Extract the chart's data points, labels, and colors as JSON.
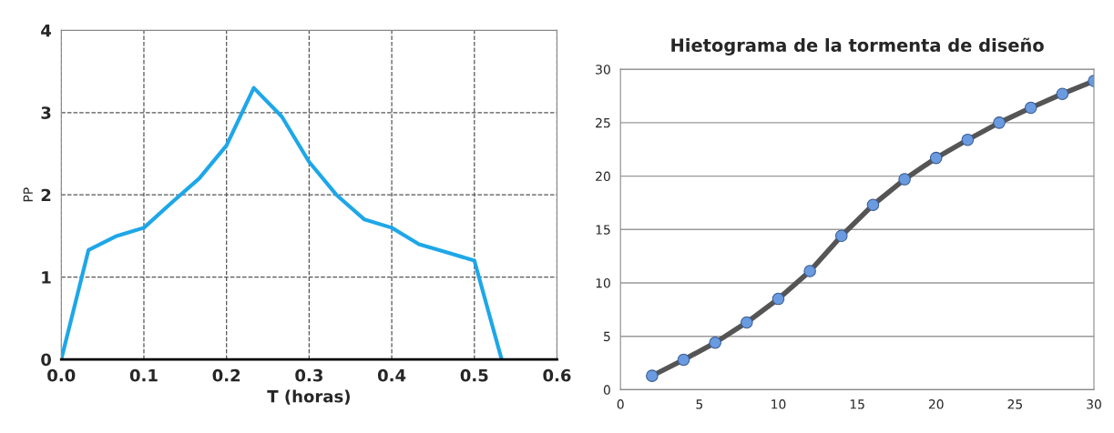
{
  "chart_data": [
    {
      "type": "line",
      "xlabel": "T (horas)",
      "ylabel": "PP",
      "xlim": [
        0,
        0.6
      ],
      "ylim": [
        0,
        4
      ],
      "xticks": [
        {
          "value": 0,
          "label": "0.0"
        },
        0.1,
        0.2,
        0.3,
        0.4,
        0.5,
        0.6
      ],
      "yticks": [
        0,
        1,
        2,
        3,
        4
      ],
      "grid": true,
      "marker": "none",
      "line_style": "solid",
      "series": [
        {
          "color": "#1ea7e8",
          "x": [
            0,
            0.033,
            0.067,
            0.1,
            0.133,
            0.167,
            0.2,
            0.233,
            0.267,
            0.3,
            0.333,
            0.367,
            0.4,
            0.433,
            0.467,
            0.5,
            0.533
          ],
          "values": [
            0,
            1.33,
            1.5,
            1.6,
            1.9,
            2.2,
            2.6,
            3.3,
            2.95,
            2.4,
            2.0,
            1.7,
            1.6,
            1.4,
            1.3,
            1.2,
            0
          ]
        }
      ]
    },
    {
      "type": "line",
      "title": "Hietograma de la tormenta de diseño",
      "xlim": [
        0,
        30
      ],
      "ylim": [
        0,
        30
      ],
      "xticks": [
        0,
        5,
        10,
        15,
        20,
        25,
        30
      ],
      "yticks": [
        0,
        5,
        10,
        15,
        20,
        25,
        30
      ],
      "grid": "y",
      "marker": "circle",
      "line_style": "solid",
      "series": [
        {
          "color": "#555555",
          "x": [
            2,
            4,
            6,
            8,
            10,
            12,
            14,
            16,
            18,
            20,
            22,
            24,
            26,
            28,
            30
          ],
          "values": [
            1.3,
            2.8,
            4.4,
            6.3,
            8.5,
            11.1,
            14.4,
            17.3,
            19.7,
            21.7,
            23.4,
            25.0,
            26.4,
            27.7,
            28.9
          ]
        }
      ]
    }
  ]
}
